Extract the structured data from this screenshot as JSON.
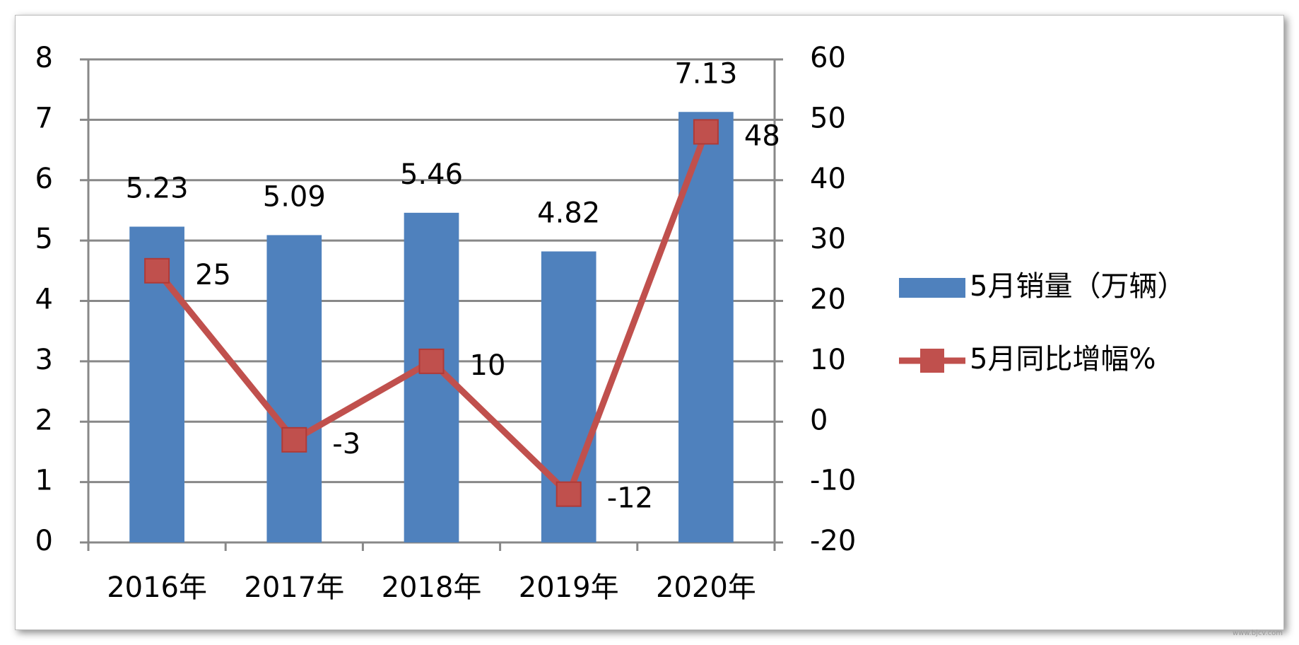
{
  "chart_data": {
    "type": "bar",
    "categories": [
      "2016年",
      "2017年",
      "2018年",
      "2019年",
      "2020年"
    ],
    "series": [
      {
        "name": "5月销量（万辆）",
        "color": "#4f81bd",
        "values": [
          5.23,
          5.09,
          5.46,
          4.82,
          7.13
        ]
      },
      {
        "name": "5月同比增幅%",
        "color": "#c0504d",
        "type": "line",
        "axis": "y2",
        "values": [
          25,
          -3,
          10,
          -12,
          48
        ]
      }
    ],
    "ylim": [
      0,
      8
    ],
    "yticks": [
      0,
      1,
      2,
      3,
      4,
      5,
      6,
      7,
      8
    ],
    "y2lim": [
      -20,
      60
    ],
    "y2ticks": [
      -20,
      -10,
      0,
      10,
      20,
      30,
      40,
      50,
      60
    ],
    "grid": true,
    "legend": "right",
    "watermark": "www.bjcv.com"
  }
}
